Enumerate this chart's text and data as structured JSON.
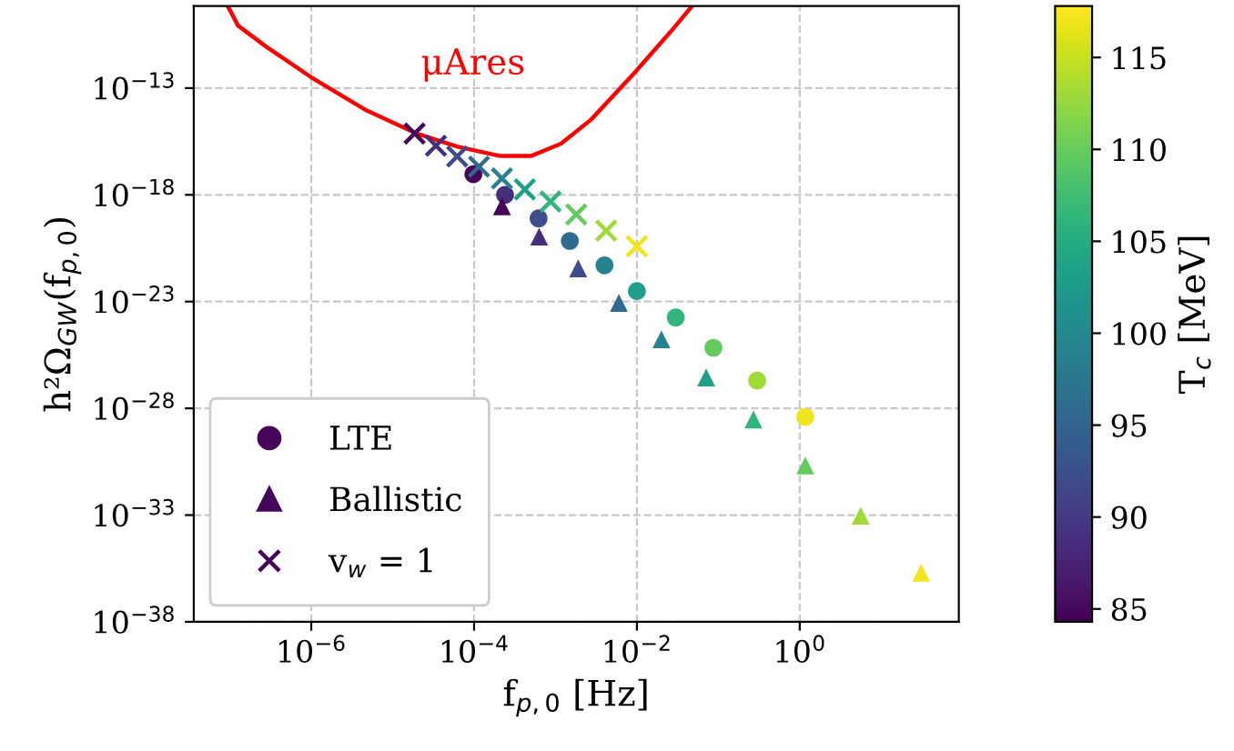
{
  "chart_data": {
    "type": "scatter",
    "xlabel": "f$_{p,0}$ [Hz]",
    "ylabel": "h²Ω$_{GW}$(f$_{p,0}$)",
    "clabel": "T$_{c}$ [MeV]",
    "log": "xy",
    "grid": true,
    "legend": "bottom left",
    "xlim": [
      3.6e-08,
      90
    ],
    "ylim": [
      1e-38,
      7e-10
    ],
    "xticks": [
      {
        "value": 1e-06,
        "label": "10$^{−6}$"
      },
      {
        "value": 0.0001,
        "label": "10$^{−4}$"
      },
      {
        "value": 0.01,
        "label": "10$^{−2}$"
      },
      {
        "value": 1,
        "label": "10$^{0}$"
      }
    ],
    "yticks": [
      {
        "value": 1e-38,
        "label": "10$^{−38}$"
      },
      {
        "value": 1e-33,
        "label": "10$^{−33}$"
      },
      {
        "value": 1e-28,
        "label": "10$^{−28}$"
      },
      {
        "value": 1e-23,
        "label": "10$^{−23}$"
      },
      {
        "value": 1e-18,
        "label": "10$^{−18}$"
      },
      {
        "value": 1e-13,
        "label": "10$^{−13}$"
      }
    ],
    "clim": [
      84.3,
      117.8
    ],
    "cticks": [
      85,
      90,
      95,
      100,
      105,
      110,
      115
    ],
    "annotations": [
      "μAres"
    ],
    "series": [
      {
        "type": "line",
        "color": "#ff0000",
        "marker": "none",
        "line_style": "solid",
        "x": [
          9.5e-08,
          1.26e-07,
          2.8e-07,
          1e-06,
          4.8e-06,
          1.9e-05,
          6.3e-05,
          0.00021,
          0.0005,
          0.00117,
          0.00275,
          0.0091,
          0.026,
          0.047
        ],
        "values": [
          6.5e-10,
          8.5e-11,
          8.7e-12,
          3.2e-13,
          8.9e-15,
          7.9e-16,
          1.8e-16,
          6.6e-17,
          6.6e-17,
          2.5e-16,
          3.4e-15,
          4.6e-13,
          4.4e-11,
          6.5e-10
        ]
      },
      {
        "name": "LTE",
        "marker": "circle",
        "x": [
          9.8e-05,
          0.00024,
          0.00062,
          0.0015,
          0.004,
          0.01,
          0.03,
          0.087,
          0.3,
          1.17
        ],
        "values": [
          9.3e-18,
          1e-18,
          7.9e-20,
          6.9e-21,
          5e-22,
          3.1e-23,
          1.8e-24,
          6.9e-26,
          2e-27,
          4e-29
        ],
        "colors": [
          "#450559",
          "#472e7c",
          "#3e4c8a",
          "#306a8e",
          "#26828e",
          "#1f9f88",
          "#31b57b",
          "#65cb5e",
          "#a0da39",
          "#f1e51d"
        ]
      },
      {
        "name": "Ballistic",
        "marker": "triangle",
        "x": [
          0.00022,
          0.00063,
          0.0019,
          0.006,
          0.02,
          0.071,
          0.27,
          1.17,
          5.6,
          31
        ],
        "values": [
          2.9e-19,
          1.1e-20,
          3.6e-22,
          8.7e-24,
          1.7e-25,
          2.8e-27,
          3e-29,
          2.1e-31,
          9.3e-34,
          2e-36
        ],
        "colors": [
          "#450559",
          "#472e7c",
          "#3e4c8a",
          "#306a8e",
          "#26828e",
          "#1f9f88",
          "#31b57b",
          "#65cb5e",
          "#a0da39",
          "#f1e51d"
        ]
      },
      {
        "name": "v$_{w}$ = 1",
        "marker": "cross",
        "x": [
          1.86e-05,
          3.4e-05,
          6.2e-05,
          0.000115,
          0.00022,
          0.00042,
          0.00087,
          0.0018,
          0.0042,
          0.01
        ],
        "values": [
          7.4e-16,
          2e-16,
          6.3e-17,
          2.1e-17,
          5.9e-18,
          1.8e-18,
          4.9e-19,
          1.2e-19,
          2.1e-20,
          3.9e-21
        ],
        "colors": [
          "#450559",
          "#472e7c",
          "#3e4c8a",
          "#306a8e",
          "#26828e",
          "#1f9f88",
          "#31b57b",
          "#65cb5e",
          "#a0da39",
          "#f1e51d"
        ]
      }
    ]
  }
}
